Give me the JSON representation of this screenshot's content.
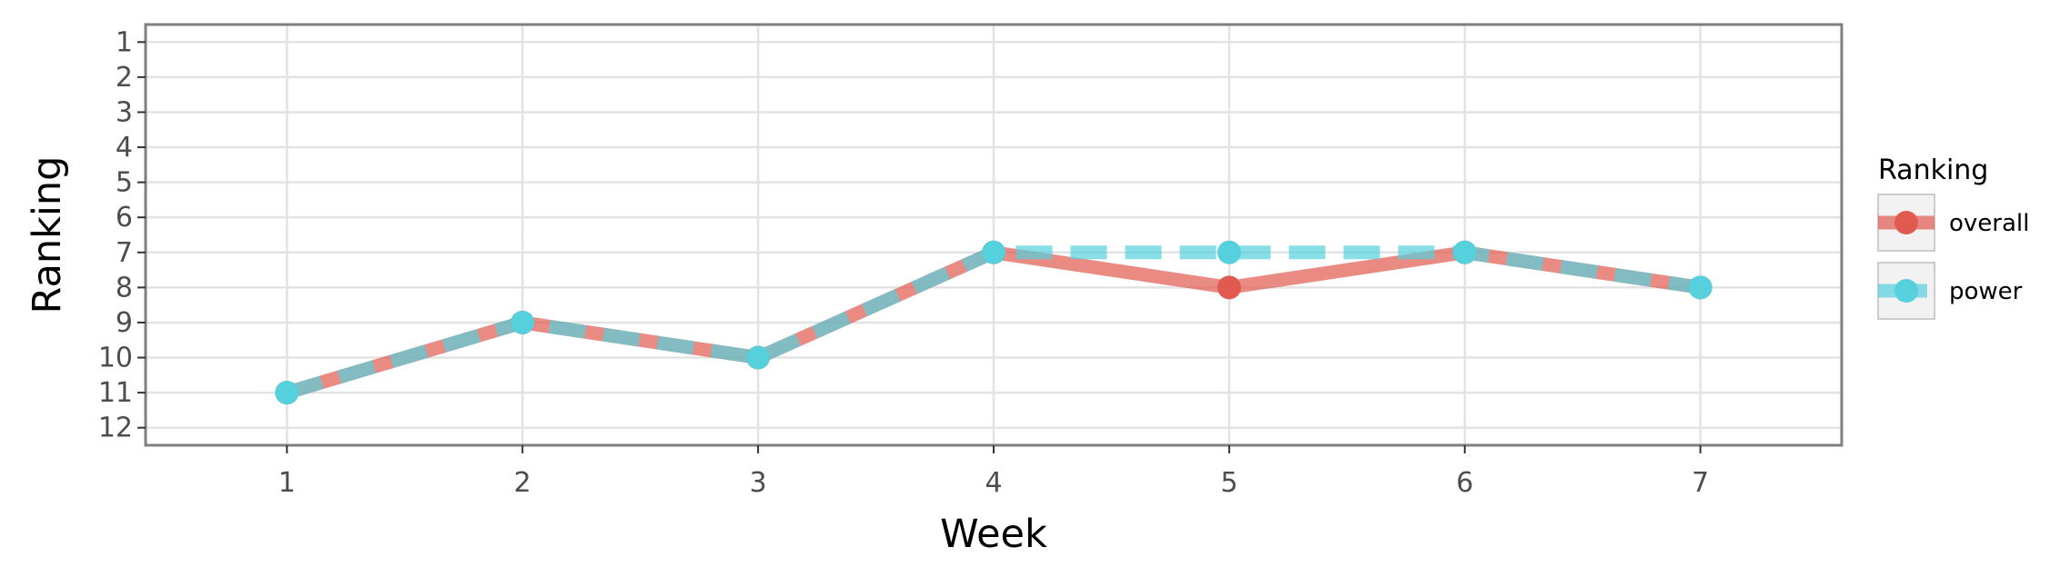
{
  "chart_data": {
    "type": "line",
    "xlabel": "Week",
    "ylabel": "Ranking",
    "x": [
      1,
      2,
      3,
      4,
      5,
      6,
      7
    ],
    "xlim": [
      0.4,
      7.6
    ],
    "ylim": [
      12.5,
      0.5
    ],
    "y_reversed": true,
    "y_ticks": [
      1,
      2,
      3,
      4,
      5,
      6,
      7,
      8,
      9,
      10,
      11,
      12
    ],
    "grid": true,
    "legend": {
      "title": "Ranking",
      "position": "right"
    },
    "series": [
      {
        "name": "overall",
        "values": [
          11,
          9,
          10,
          7,
          8,
          7,
          8
        ],
        "color": "#e05a4f",
        "linestyle": "solid"
      },
      {
        "name": "power",
        "values": [
          11,
          9,
          10,
          7,
          7,
          7,
          8
        ],
        "color": "#55d0dc",
        "linestyle": "dashed"
      }
    ]
  }
}
